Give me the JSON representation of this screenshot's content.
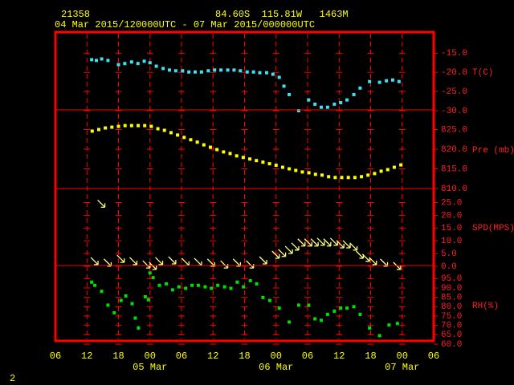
{
  "station": "21358",
  "location": "84.60S  115.81W   1463M",
  "period": "04 Mar 2015/120000UTC - 07 Mar 2015/000000UTC",
  "page_number": "2",
  "x_axis": {
    "xlim": [
      6,
      78
    ],
    "xticks": [
      {
        "value": 6,
        "label": "06"
      },
      {
        "value": 12,
        "label": "12"
      },
      {
        "value": 18,
        "label": "18"
      },
      {
        "value": 24,
        "label": "00"
      },
      {
        "value": 30,
        "label": "06"
      },
      {
        "value": 36,
        "label": "12"
      },
      {
        "value": 42,
        "label": "18"
      },
      {
        "value": 48,
        "label": "00"
      },
      {
        "value": 54,
        "label": "06"
      },
      {
        "value": 60,
        "label": "12"
      },
      {
        "value": 66,
        "label": "18"
      },
      {
        "value": 72,
        "label": "00"
      },
      {
        "value": 78,
        "label": "06"
      }
    ],
    "date_labels": [
      {
        "value": 24,
        "label": "05 Mar"
      },
      {
        "value": 48,
        "label": "06 Mar"
      },
      {
        "value": 72,
        "label": "07 Mar"
      }
    ]
  },
  "chart_data": [
    {
      "type": "scatter",
      "y_label": "T(C)",
      "color": "#40e0f0",
      "ylim": [
        -30,
        -9.5
      ],
      "yticks": [
        {
          "value": -15,
          "label": "-15.0"
        },
        {
          "value": -20,
          "label": "-20.0"
        },
        {
          "value": -25,
          "label": "-25.0"
        },
        {
          "value": -30,
          "label": "-30.0"
        }
      ],
      "x": [
        12.9,
        13.8,
        14.8,
        16,
        18,
        19.2,
        20.5,
        21.7,
        22.9,
        24,
        25.2,
        26.5,
        27.7,
        28.9,
        30.2,
        31.4,
        32.6,
        33.8,
        35.1,
        36.3,
        37.5,
        38.8,
        40,
        41.2,
        42.5,
        43.7,
        44.9,
        46.2,
        47.4,
        48.6,
        49.5,
        50.5,
        52.3,
        54.2,
        55.4,
        56.6,
        57.8,
        59.1,
        60.3,
        61.5,
        62.8,
        64,
        65.8,
        67.7,
        69,
        70.2,
        71.4
      ],
      "values": [
        -16.7,
        -16.9,
        -16.5,
        -16.9,
        -18,
        -17.7,
        -17.3,
        -17.7,
        -17.1,
        -17.5,
        -18.4,
        -19,
        -19.4,
        -19.6,
        -19.6,
        -19.9,
        -19.9,
        -19.9,
        -19.6,
        -19.4,
        -19.4,
        -19.4,
        -19.4,
        -19.6,
        -19.9,
        -19.9,
        -20.1,
        -20.1,
        -20.5,
        -21.3,
        -23.6,
        -25.8,
        -30,
        -27.2,
        -28.3,
        -29.1,
        -29.1,
        -28.3,
        -27.9,
        -27.2,
        -25.8,
        -24.1,
        -22.4,
        -22.6,
        -22.2,
        -22,
        -22.4
      ]
    },
    {
      "type": "scatter",
      "y_label": "Pre (mb)",
      "color": "#ffff00",
      "ylim": [
        810,
        830
      ],
      "yticks": [
        {
          "value": 825,
          "label": "825.0"
        },
        {
          "value": 820,
          "label": "820.0"
        },
        {
          "value": 815,
          "label": "815.0"
        },
        {
          "value": 810,
          "label": "810.0"
        }
      ],
      "x": [
        13,
        14.25,
        15.5,
        16.75,
        18,
        19.25,
        20.5,
        21.75,
        23,
        24.25,
        25.5,
        26.75,
        28,
        29.25,
        30.5,
        31.75,
        33,
        34.25,
        35.5,
        36.75,
        38,
        39.25,
        40.5,
        41.75,
        43,
        44.25,
        45.5,
        46.75,
        48,
        49.25,
        50.5,
        51.75,
        53,
        54.25,
        55.5,
        56.75,
        58,
        59.25,
        60.5,
        61.75,
        63,
        64.25,
        65.5,
        66.75,
        68,
        69.25,
        70.5,
        71.75
      ],
      "values": [
        824.6,
        825,
        825.4,
        825.6,
        825.8,
        826,
        826,
        826,
        826,
        825.8,
        825.2,
        824.8,
        824.2,
        823.6,
        823,
        822.4,
        821.8,
        821.1,
        820.5,
        819.9,
        819.3,
        818.9,
        818.3,
        817.9,
        817.5,
        817.1,
        816.7,
        816.3,
        815.9,
        815.4,
        815,
        814.6,
        814.2,
        814,
        813.6,
        813.4,
        813,
        812.8,
        812.8,
        812.8,
        812.8,
        813,
        813.4,
        813.8,
        814.4,
        814.8,
        815.4,
        816
      ]
    },
    {
      "type": "wind",
      "y_label": "SPD(MPS)",
      "color": "#ffff80",
      "ylim": [
        0,
        30.5
      ],
      "yticks": [
        {
          "value": 25,
          "label": "25.0"
        },
        {
          "value": 20,
          "label": "20.0"
        },
        {
          "value": 15,
          "label": "15.0"
        },
        {
          "value": 10,
          "label": "10.0"
        },
        {
          "value": 5,
          "label": "5.0"
        },
        {
          "value": 0,
          "label": "0.0"
        }
      ],
      "x": [
        13.5,
        14.8,
        16,
        18.5,
        20.9,
        23.4,
        24.6,
        25.8,
        28.3,
        30.8,
        33.2,
        35.7,
        38.2,
        40.6,
        43.1,
        45.6,
        48,
        49.2,
        50.5,
        51.7,
        52.9,
        54.2,
        55.4,
        56.6,
        57.8,
        59.1,
        60.3,
        61.5,
        62.8,
        64,
        65.2,
        66.5,
        68.6,
        71.1
      ],
      "values": [
        1.9,
        24.4,
        1.3,
        2.8,
        1.9,
        0.6,
        0,
        1.9,
        2.2,
        1.6,
        1.6,
        1.3,
        0.6,
        1.3,
        0.6,
        2.2,
        4.4,
        5.1,
        6.3,
        7.6,
        9.2,
        9.2,
        9.2,
        9.5,
        9.2,
        9.5,
        8.5,
        8.5,
        7.6,
        4.4,
        3.2,
        1.9,
        1.3,
        0
      ]
    },
    {
      "type": "scatter",
      "y_label": "RH(%)",
      "color": "#00e000",
      "ylim": [
        60,
        102
      ],
      "yticks": [
        {
          "value": 95,
          "label": "95.0"
        },
        {
          "value": 90,
          "label": "90.0"
        },
        {
          "value": 85,
          "label": "85.0"
        },
        {
          "value": 80,
          "label": "80.0"
        },
        {
          "value": 75,
          "label": "75.0"
        },
        {
          "value": 70,
          "label": "70.0"
        },
        {
          "value": 65,
          "label": "65.0"
        },
        {
          "value": 60,
          "label": "60.0"
        }
      ],
      "x": [
        12.9,
        13.5,
        14.8,
        16,
        17.2,
        18.5,
        19.4,
        20.6,
        21.2,
        21.8,
        23.1,
        23.7,
        24,
        24.6,
        25.8,
        27.1,
        28.3,
        29.5,
        30.8,
        32,
        33.2,
        34.5,
        35.7,
        36.9,
        38.2,
        39.4,
        40.6,
        41.8,
        43.1,
        44.3,
        45.5,
        46.8,
        48.6,
        50.5,
        52.3,
        54.2,
        55.4,
        56.6,
        57.8,
        59.1,
        60.3,
        61.5,
        62.8,
        64,
        65.8,
        67.7,
        69.5,
        71.1
      ],
      "values": [
        93.1,
        91.4,
        88.2,
        80.8,
        76.7,
        83.3,
        85.7,
        81.6,
        73.9,
        68.6,
        85.3,
        83.7,
        98,
        95.5,
        91.4,
        92.2,
        89,
        90.6,
        89.8,
        91.4,
        91.4,
        90.6,
        89.8,
        91.4,
        90.6,
        89.8,
        93.1,
        90.6,
        93.9,
        92.2,
        84.9,
        83.3,
        79.2,
        71.8,
        80.8,
        80.8,
        73.5,
        72.7,
        75.9,
        77.6,
        79.2,
        79.2,
        80,
        75.9,
        68.6,
        64.5,
        70.2,
        71
      ]
    }
  ]
}
